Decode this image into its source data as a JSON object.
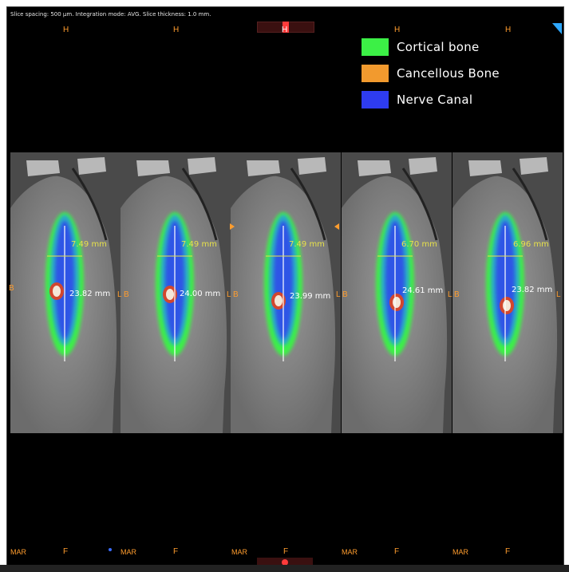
{
  "info_text": "Slice spacing: 500 µm. Integration mode: AVG. Slice thickness: 1.0 mm.",
  "legend": [
    {
      "label": "Cortical bone",
      "color": "#3cf046"
    },
    {
      "label": "Cancellous Bone",
      "color": "#f29a2e"
    },
    {
      "label": "Nerve Canal",
      "color": "#2e3cf0"
    }
  ],
  "orientation": {
    "top": "H",
    "bottom": "F",
    "left": "B",
    "right": "L",
    "bottom_left": "MAR"
  },
  "slices": [
    {
      "width_label": "7.49 mm",
      "height_label": "23.82 mm"
    },
    {
      "width_label": "7.49 mm",
      "height_label": "24.00 mm"
    },
    {
      "width_label": "7.49 mm",
      "height_label": "23.99 mm"
    },
    {
      "width_label": "6.70 mm",
      "height_label": "24.61 mm"
    },
    {
      "width_label": "6.96 mm",
      "height_label": "23.82 mm"
    }
  ],
  "colors": {
    "background": "#000000",
    "bone_gray": "#8a8a8a",
    "label_orange": "#ff9d2e",
    "width_yellow": "#e8e24a"
  }
}
